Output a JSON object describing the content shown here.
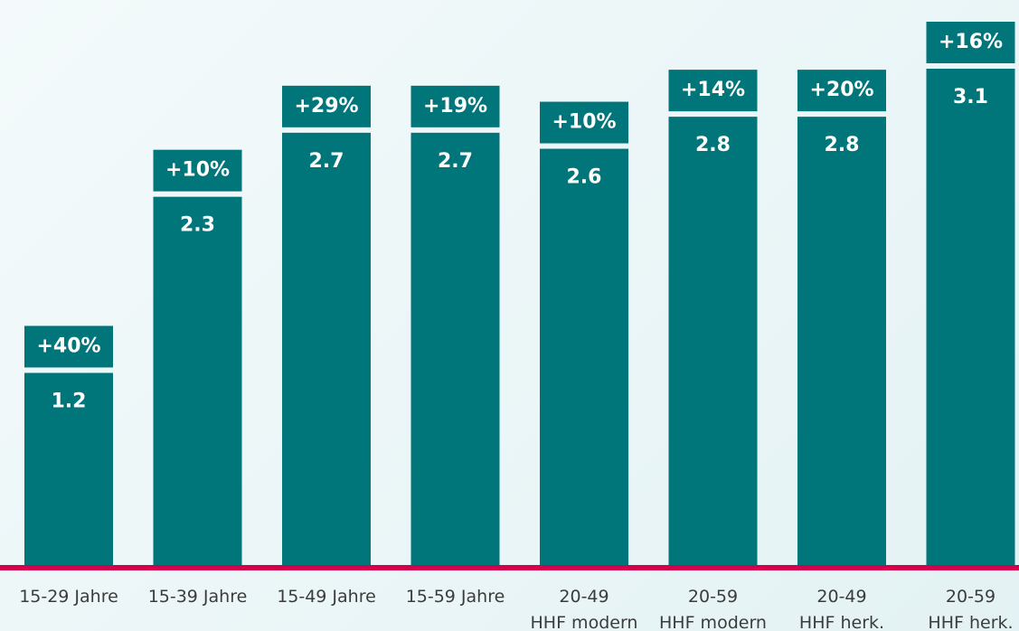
{
  "chart_data": {
    "type": "bar",
    "categories": [
      "15-29 Jahre",
      "15-39 Jahre",
      "15-49 Jahre",
      "15-59 Jahre",
      "20-49\nHHF modern",
      "20-59\nHHF modern",
      "20-49\nHHF herk.",
      "20-59\nHHF herk."
    ],
    "values": [
      1.2,
      2.3,
      2.7,
      2.7,
      2.6,
      2.8,
      2.8,
      3.1
    ],
    "annotations": [
      "+40%",
      "+10%",
      "+29%",
      "+19%",
      "+10%",
      "+14%",
      "+20%",
      "+16%"
    ],
    "color": "#00767b",
    "baseline_color": "#d4004c"
  }
}
